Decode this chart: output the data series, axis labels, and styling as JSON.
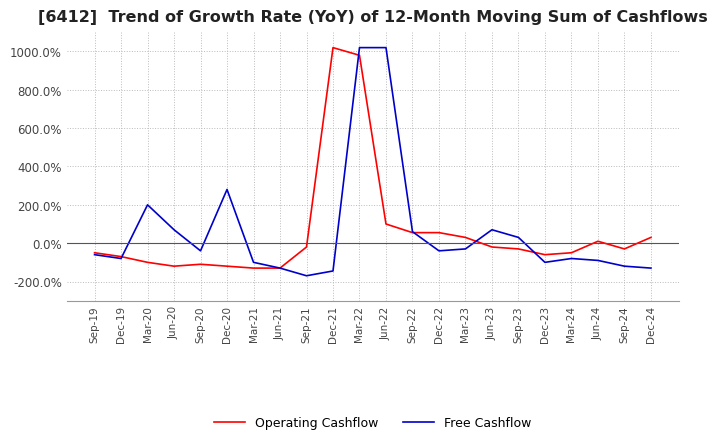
{
  "title": "[6412]  Trend of Growth Rate (YoY) of 12-Month Moving Sum of Cashflows",
  "title_fontsize": 11.5,
  "ylim": [
    -300,
    1100
  ],
  "yticks": [
    -200,
    0,
    200,
    400,
    600,
    800,
    1000
  ],
  "ytick_labels": [
    "-200.0%",
    "0.0%",
    "200.0%",
    "400.0%",
    "600.0%",
    "800.0%",
    "1000.0%"
  ],
  "background_color": "#ffffff",
  "grid_color": "#bbbbbb",
  "operating_color": "#ff0000",
  "free_color": "#0000cc",
  "legend_labels": [
    "Operating Cashflow",
    "Free Cashflow"
  ],
  "x_labels": [
    "Sep-19",
    "Dec-19",
    "Mar-20",
    "Jun-20",
    "Sep-20",
    "Dec-20",
    "Mar-21",
    "Jun-21",
    "Sep-21",
    "Dec-21",
    "Mar-22",
    "Jun-22",
    "Sep-22",
    "Dec-22",
    "Mar-23",
    "Jun-23",
    "Sep-23",
    "Dec-23",
    "Mar-24",
    "Jun-24",
    "Sep-24",
    "Dec-24"
  ],
  "operating_cashflow": [
    -50,
    -70,
    -100,
    -120,
    -110,
    -120,
    -130,
    -130,
    -20,
    1020,
    980,
    100,
    55,
    55,
    30,
    -20,
    -30,
    -60,
    -50,
    10,
    -30,
    30
  ],
  "free_cashflow": [
    -60,
    -80,
    200,
    70,
    -40,
    280,
    -100,
    -130,
    -170,
    -145,
    1020,
    1020,
    60,
    -40,
    -30,
    70,
    30,
    -100,
    -80,
    -90,
    -120,
    -130
  ]
}
